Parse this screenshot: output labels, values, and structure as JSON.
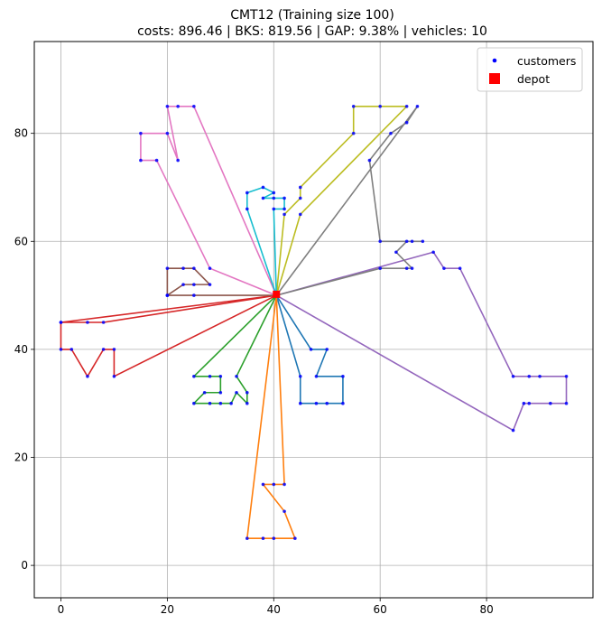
{
  "chart_data": {
    "type": "scatter",
    "title_line1": "CMT12 (Training size 100)",
    "title_line2": "costs: 896.46 | BKS: 819.56 | GAP: 9.38% | vehicles: 10",
    "xlabel": "",
    "ylabel": "",
    "xlim": [
      -5,
      100
    ],
    "ylim": [
      -6,
      97
    ],
    "xticks": [
      0,
      20,
      40,
      60,
      80
    ],
    "yticks": [
      0,
      20,
      40,
      60,
      80
    ],
    "grid": true,
    "legend_placement": "top-right",
    "legend": [
      {
        "label": "customers",
        "color": "#0000ff",
        "marker": "dot"
      },
      {
        "label": "depot",
        "color": "#ff0000",
        "marker": "square"
      }
    ],
    "depot": {
      "x": 40.5,
      "y": 50.2
    },
    "routes": [
      {
        "color": "#1f77b4",
        "points": [
          [
            40.5,
            50
          ],
          [
            47,
            40
          ],
          [
            50,
            40
          ],
          [
            48,
            35
          ],
          [
            53,
            35
          ],
          [
            53,
            30
          ],
          [
            50,
            30
          ],
          [
            48,
            30
          ],
          [
            45,
            30
          ],
          [
            45,
            35
          ],
          [
            40.5,
            50
          ]
        ]
      },
      {
        "color": "#ff7f0e",
        "points": [
          [
            40.5,
            50
          ],
          [
            35,
            5
          ],
          [
            38,
            5
          ],
          [
            40,
            5
          ],
          [
            44,
            5
          ],
          [
            42,
            10
          ],
          [
            38,
            15
          ],
          [
            40,
            15
          ],
          [
            42,
            15
          ],
          [
            40.5,
            50
          ]
        ]
      },
      {
        "color": "#2ca02c",
        "points": [
          [
            40.5,
            50
          ],
          [
            25,
            35
          ],
          [
            28,
            35
          ],
          [
            30,
            35
          ],
          [
            30,
            32
          ],
          [
            27,
            32
          ],
          [
            25,
            30
          ],
          [
            28,
            30
          ],
          [
            30,
            30
          ],
          [
            32,
            30
          ],
          [
            33,
            32
          ],
          [
            35,
            30
          ],
          [
            35,
            32
          ],
          [
            33,
            35
          ],
          [
            40.5,
            50
          ]
        ]
      },
      {
        "color": "#d62728",
        "points": [
          [
            40.5,
            50
          ],
          [
            0,
            45
          ],
          [
            5,
            45
          ],
          [
            8,
            45
          ],
          [
            40.5,
            50
          ],
          [
            10,
            35
          ],
          [
            10,
            40
          ],
          [
            8,
            40
          ],
          [
            5,
            35
          ],
          [
            2,
            40
          ],
          [
            0,
            40
          ],
          [
            0,
            45
          ]
        ]
      },
      {
        "color": "#9467bd",
        "points": [
          [
            40.5,
            50
          ],
          [
            70,
            58
          ],
          [
            72,
            55
          ],
          [
            75,
            55
          ],
          [
            85,
            35
          ],
          [
            88,
            35
          ],
          [
            90,
            35
          ],
          [
            95,
            35
          ],
          [
            95,
            30
          ],
          [
            92,
            30
          ],
          [
            88,
            30
          ],
          [
            87,
            30
          ],
          [
            85,
            25
          ],
          [
            40.5,
            50
          ]
        ]
      },
      {
        "color": "#8c564b",
        "points": [
          [
            40.5,
            50
          ],
          [
            20,
            50
          ],
          [
            20,
            55
          ],
          [
            23,
            55
          ],
          [
            25,
            55
          ],
          [
            28,
            52
          ],
          [
            25,
            52
          ],
          [
            23,
            52
          ],
          [
            20,
            50
          ],
          [
            25,
            50
          ],
          [
            40.5,
            50
          ]
        ]
      },
      {
        "color": "#e377c2",
        "points": [
          [
            40.5,
            50
          ],
          [
            28,
            55
          ],
          [
            18,
            75
          ],
          [
            15,
            75
          ],
          [
            15,
            80
          ],
          [
            20,
            80
          ],
          [
            22,
            75
          ],
          [
            20,
            85
          ],
          [
            22,
            85
          ],
          [
            25,
            85
          ],
          [
            40.5,
            50
          ]
        ]
      },
      {
        "color": "#7f7f7f",
        "points": [
          [
            40.5,
            50
          ],
          [
            60,
            55
          ],
          [
            65,
            55
          ],
          [
            66,
            55
          ],
          [
            63,
            58
          ],
          [
            65,
            60
          ],
          [
            66,
            60
          ],
          [
            68,
            60
          ],
          [
            60,
            60
          ],
          [
            58,
            75
          ],
          [
            62,
            80
          ],
          [
            65,
            82
          ],
          [
            67,
            85
          ],
          [
            40.5,
            50
          ]
        ]
      },
      {
        "color": "#bcbd22",
        "points": [
          [
            40.5,
            50
          ],
          [
            45,
            65
          ],
          [
            65,
            85
          ],
          [
            60,
            85
          ],
          [
            55,
            85
          ],
          [
            55,
            80
          ],
          [
            45,
            70
          ],
          [
            45,
            68
          ],
          [
            42,
            65
          ],
          [
            40.5,
            50
          ]
        ]
      },
      {
        "color": "#17becf",
        "points": [
          [
            40.5,
            50
          ],
          [
            40,
            66
          ],
          [
            42,
            66
          ],
          [
            42,
            68
          ],
          [
            40,
            68
          ],
          [
            38,
            68
          ],
          [
            40,
            69
          ],
          [
            38,
            70
          ],
          [
            35,
            69
          ],
          [
            35,
            66
          ],
          [
            40.5,
            50
          ]
        ]
      }
    ]
  }
}
